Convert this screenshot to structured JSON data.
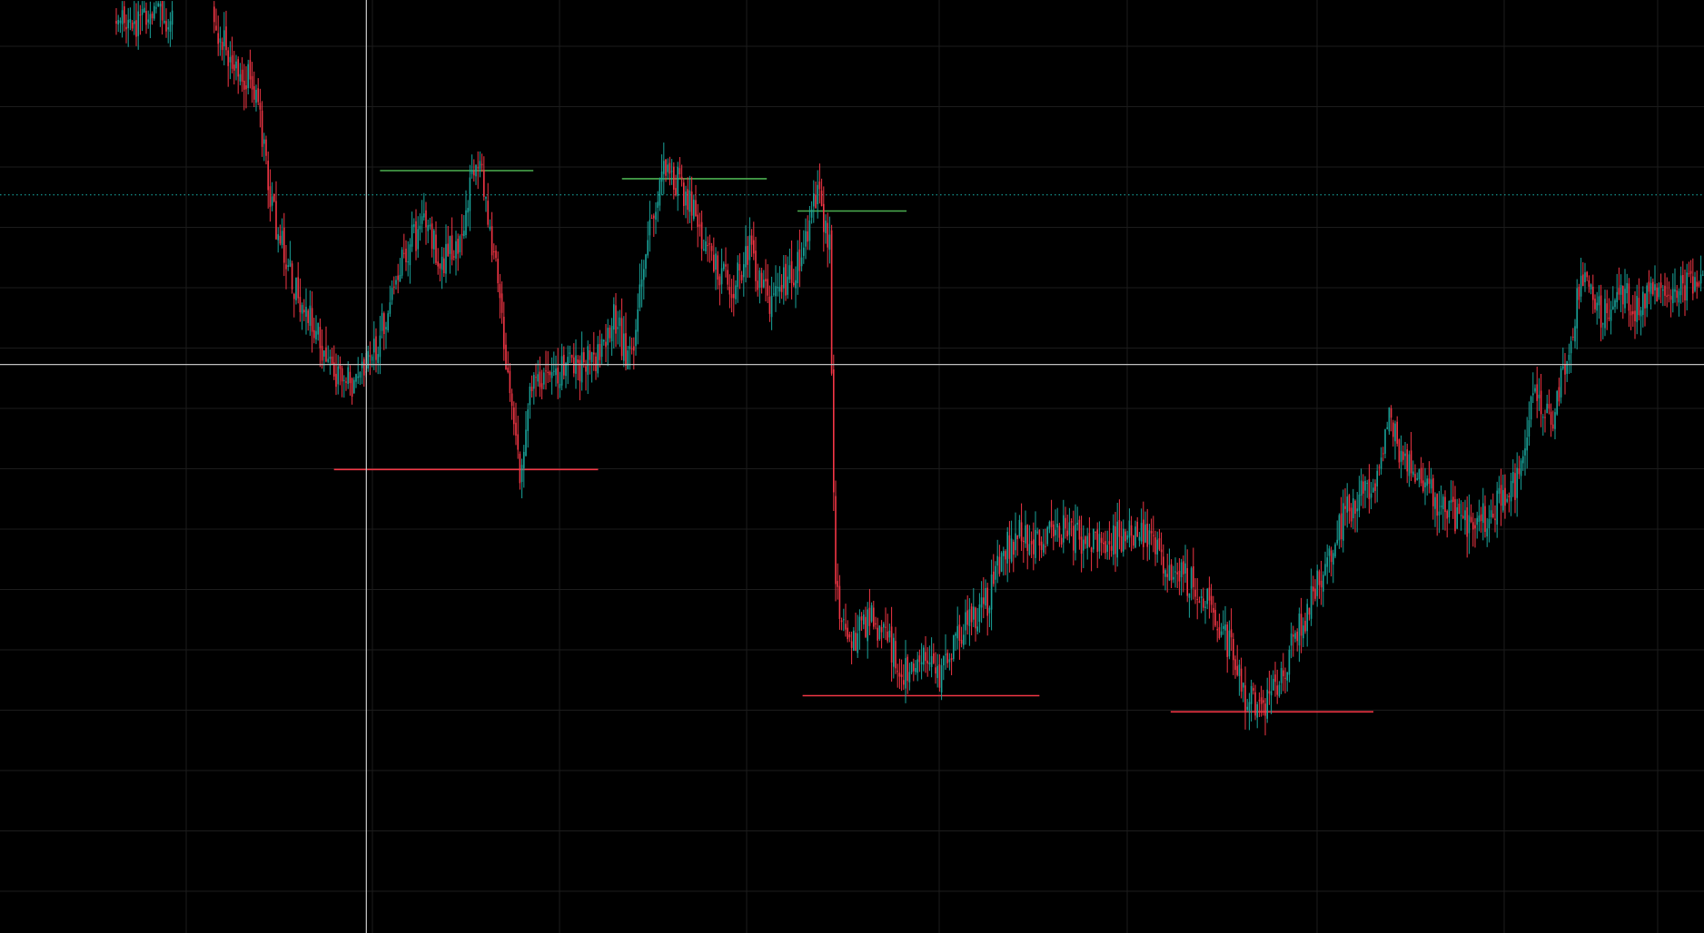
{
  "chart_data": {
    "type": "candlestick",
    "title": "",
    "xlabel": "",
    "ylabel": "",
    "x_range": [
      0,
      100
    ],
    "y_range": [
      0,
      100
    ],
    "grid": true,
    "colors": {
      "background": "#000000",
      "grid": "#1c1c1c",
      "up": "#1aa39a",
      "down": "#f23645",
      "resistance": "#4caf50",
      "support": "#f23645",
      "crosshair": "#bfbfbf",
      "price_line": "#17a29a"
    },
    "price_trace": [
      [
        0,
        100
      ],
      [
        7,
        98
      ],
      [
        10,
        99
      ],
      [
        12,
        100
      ],
      [
        13,
        96
      ],
      [
        15,
        90
      ],
      [
        16,
        75
      ],
      [
        17,
        67
      ],
      [
        18,
        62
      ],
      [
        20,
        54
      ],
      [
        21,
        53
      ],
      [
        22,
        58
      ],
      [
        24,
        71
      ],
      [
        25,
        73
      ],
      [
        26,
        69
      ],
      [
        27,
        71
      ],
      [
        28,
        82
      ],
      [
        29,
        70
      ],
      [
        30,
        50
      ],
      [
        30.5,
        42
      ],
      [
        31,
        52
      ],
      [
        32,
        54
      ],
      [
        33,
        55
      ],
      [
        35,
        57
      ],
      [
        36,
        62
      ],
      [
        37,
        56
      ],
      [
        38,
        72
      ],
      [
        39,
        81
      ],
      [
        40,
        78
      ],
      [
        41,
        73
      ],
      [
        42,
        68
      ],
      [
        43,
        66
      ],
      [
        44,
        70
      ],
      [
        45,
        64
      ],
      [
        46,
        66
      ],
      [
        47,
        69
      ],
      [
        48,
        78
      ],
      [
        48.7,
        70
      ],
      [
        49,
        28
      ],
      [
        50,
        21
      ],
      [
        51,
        25
      ],
      [
        52,
        22
      ],
      [
        53,
        18
      ],
      [
        54,
        20
      ],
      [
        55,
        17
      ],
      [
        56,
        22
      ],
      [
        57,
        24
      ],
      [
        58,
        27
      ],
      [
        59,
        33
      ],
      [
        60,
        35
      ],
      [
        61,
        33
      ],
      [
        62,
        36
      ],
      [
        63,
        35
      ],
      [
        64,
        34
      ],
      [
        65,
        34
      ],
      [
        66,
        35
      ],
      [
        67,
        35
      ],
      [
        68,
        33
      ],
      [
        69,
        30
      ],
      [
        70,
        29
      ],
      [
        71,
        26
      ],
      [
        72,
        22
      ],
      [
        73,
        15
      ],
      [
        74,
        13
      ],
      [
        75,
        16
      ],
      [
        76,
        22
      ],
      [
        77,
        27
      ],
      [
        78,
        32
      ],
      [
        79,
        38
      ],
      [
        80,
        40
      ],
      [
        81,
        43
      ],
      [
        81.5,
        50
      ],
      [
        82,
        46
      ],
      [
        83,
        43
      ],
      [
        84,
        40
      ],
      [
        85,
        38
      ],
      [
        86,
        36
      ],
      [
        87,
        37
      ],
      [
        88,
        39
      ],
      [
        89,
        41
      ],
      [
        90,
        53
      ],
      [
        91,
        48
      ],
      [
        92,
        58
      ],
      [
        93,
        68
      ],
      [
        94,
        62
      ],
      [
        95,
        66
      ],
      [
        96,
        63
      ],
      [
        97,
        65
      ],
      [
        98,
        64
      ],
      [
        99,
        66
      ],
      [
        100,
        65
      ]
    ],
    "resistance_levels": [
      {
        "y": 80,
        "x_range": [
          22.3,
          31.3
        ]
      },
      {
        "y": 79,
        "x_range": [
          36.5,
          45.0
        ]
      },
      {
        "y": 75,
        "x_range": [
          46.8,
          53.2
        ]
      }
    ],
    "support_levels": [
      {
        "y": 43,
        "x_range": [
          19.6,
          35.1
        ]
      },
      {
        "y": 15,
        "x_range": [
          47.1,
          61.0
        ]
      },
      {
        "y": 13,
        "x_range": [
          68.7,
          80.6
        ]
      }
    ],
    "current_price_y": 77,
    "crosshair": {
      "x": 21.5,
      "y": 56
    }
  }
}
